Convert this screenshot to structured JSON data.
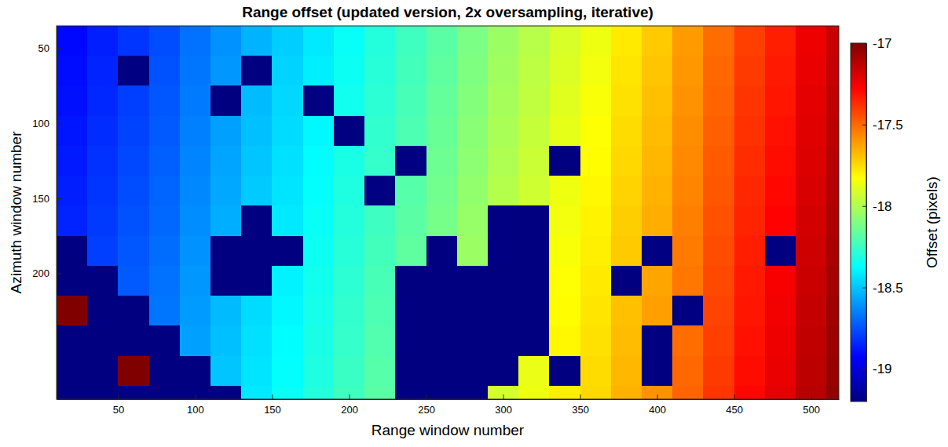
{
  "chart_data": {
    "type": "heatmap",
    "title": "Range offset (updated version, 2x oversampling, iterative)",
    "x_label": "Range window number",
    "y_label": "Azimuth window number",
    "xlim": [
      10,
      518
    ],
    "ylim": [
      35,
      284
    ],
    "xticks": [
      50,
      100,
      150,
      200,
      250,
      300,
      350,
      400,
      450,
      500
    ],
    "yticks": [
      50,
      100,
      150,
      200
    ],
    "x_edges": [
      10,
      30,
      50,
      70,
      90,
      110,
      130,
      150,
      170,
      190,
      210,
      230,
      250,
      270,
      290,
      310,
      330,
      350,
      370,
      390,
      410,
      430,
      450,
      470,
      490,
      510,
      530
    ],
    "y_edges": [
      35,
      55,
      75,
      95,
      115,
      135,
      155,
      175,
      195,
      215,
      235,
      255,
      275,
      295
    ],
    "values": [
      [
        -18.91,
        -18.86,
        -18.81,
        -18.76,
        -18.68,
        -18.61,
        -18.54,
        -18.48,
        -18.42,
        -18.36,
        -18.3,
        -18.24,
        -18.18,
        -18.11,
        -18.04,
        -17.98,
        -17.91,
        -17.86,
        -17.78,
        -17.71,
        -17.61,
        -17.51,
        -17.41,
        -17.34,
        -17.24,
        -17.16
      ],
      [
        -18.9,
        -18.85,
        -19.2,
        -18.75,
        -18.67,
        -18.6,
        -19.2,
        -18.47,
        -18.41,
        -18.35,
        -18.29,
        -18.23,
        -18.17,
        -18.1,
        -18.03,
        -17.97,
        -17.9,
        -17.85,
        -17.77,
        -17.7,
        -17.6,
        -17.5,
        -17.4,
        -17.33,
        -17.23,
        -17.15
      ],
      [
        -18.89,
        -18.84,
        -18.79,
        -18.74,
        -18.66,
        -19.2,
        -18.52,
        -18.46,
        -19.2,
        -18.34,
        -18.28,
        -18.22,
        -18.16,
        -18.09,
        -18.02,
        -17.96,
        -17.89,
        -17.84,
        -17.76,
        -17.69,
        -17.59,
        -17.49,
        -17.39,
        -17.32,
        -17.22,
        -17.14
      ],
      [
        -18.88,
        -18.83,
        -18.78,
        -18.73,
        -18.65,
        -18.58,
        -18.51,
        -18.45,
        -18.39,
        -19.2,
        -18.27,
        -18.21,
        -18.15,
        -18.08,
        -18.01,
        -17.95,
        -17.88,
        -17.83,
        -17.75,
        -17.68,
        -17.58,
        -17.48,
        -17.38,
        -17.31,
        -17.21,
        -17.13
      ],
      [
        -18.87,
        -18.82,
        -18.77,
        -18.72,
        -18.64,
        -18.57,
        -18.5,
        -18.44,
        -18.38,
        -18.32,
        -18.26,
        -19.2,
        -18.14,
        -18.07,
        -18.0,
        -17.94,
        -19.2,
        -17.82,
        -17.74,
        -17.67,
        -17.57,
        -17.47,
        -17.37,
        -17.3,
        -17.2,
        -17.12
      ],
      [
        -18.86,
        -18.81,
        -18.76,
        -18.71,
        -18.63,
        -18.56,
        -18.49,
        -18.43,
        -18.37,
        -18.31,
        -19.2,
        -18.19,
        -18.13,
        -18.06,
        -17.99,
        -17.93,
        -17.86,
        -17.81,
        -17.73,
        -17.66,
        -17.56,
        -17.46,
        -17.36,
        -17.29,
        -17.19,
        -17.11
      ],
      [
        -18.85,
        -18.8,
        -18.75,
        -18.7,
        -18.62,
        -18.55,
        -19.2,
        -18.42,
        -18.36,
        -18.3,
        -18.24,
        -18.18,
        -18.12,
        -18.05,
        -19.2,
        -19.2,
        -17.85,
        -17.8,
        -17.72,
        -17.65,
        -17.55,
        -17.45,
        -17.35,
        -17.28,
        -17.18,
        -17.1
      ],
      [
        -19.2,
        -18.79,
        -18.74,
        -18.69,
        -18.61,
        -19.2,
        -19.2,
        -19.2,
        -18.35,
        -18.29,
        -18.23,
        -18.17,
        -19.2,
        -18.04,
        -19.2,
        -19.2,
        -17.84,
        -17.79,
        -17.71,
        -19.2,
        -17.54,
        -17.44,
        -17.34,
        -19.2,
        -17.17,
        -17.09
      ],
      [
        -19.2,
        -19.2,
        -18.73,
        -18.68,
        -18.6,
        -19.2,
        -19.2,
        -18.4,
        -18.34,
        -18.28,
        -18.22,
        -19.2,
        -19.2,
        -19.2,
        -19.2,
        -19.2,
        -17.83,
        -17.78,
        -19.2,
        -17.63,
        -17.53,
        -17.43,
        -17.33,
        -17.26,
        -17.16,
        -17.08
      ],
      [
        -17.0,
        -19.2,
        -19.2,
        -18.67,
        -18.59,
        -18.52,
        -18.45,
        -18.39,
        -18.33,
        -18.27,
        -18.21,
        -19.2,
        -19.2,
        -19.2,
        -19.2,
        -19.2,
        -17.82,
        -17.77,
        -17.69,
        -17.62,
        -19.2,
        -17.42,
        -17.32,
        -17.25,
        -17.15,
        -17.07
      ],
      [
        -19.2,
        -19.2,
        -19.2,
        -19.2,
        -18.58,
        -18.51,
        -18.44,
        -18.38,
        -18.32,
        -18.26,
        -18.2,
        -19.2,
        -19.2,
        -19.2,
        -19.2,
        -19.2,
        -17.81,
        -17.76,
        -17.68,
        -19.2,
        -17.51,
        -17.41,
        -17.31,
        -17.24,
        -17.14,
        -17.06
      ],
      [
        -19.2,
        -19.2,
        -17.0,
        -19.2,
        -19.2,
        -18.5,
        -18.43,
        -18.37,
        -18.31,
        -18.25,
        -18.19,
        -19.2,
        -19.2,
        -19.2,
        -19.2,
        -17.87,
        -19.2,
        -17.75,
        -17.67,
        -19.2,
        -17.5,
        -17.4,
        -17.3,
        -17.23,
        -17.13,
        -17.05
      ],
      [
        -19.2,
        -19.2,
        -19.2,
        -19.2,
        -19.2,
        -19.2,
        -18.42,
        -18.36,
        -18.3,
        -18.24,
        -18.18,
        -19.2,
        -19.2,
        -19.2,
        -17.92,
        -17.86,
        -17.79,
        -17.74,
        -17.66,
        -17.59,
        -17.49,
        -17.39,
        -17.29,
        -17.22,
        -17.12,
        -17.04
      ]
    ],
    "colorbar": {
      "label": "Offset (pixels)",
      "range": [
        -19.2,
        -17
      ],
      "ticks": [
        -19,
        -18.5,
        -18,
        -17.5,
        -17
      ]
    }
  }
}
